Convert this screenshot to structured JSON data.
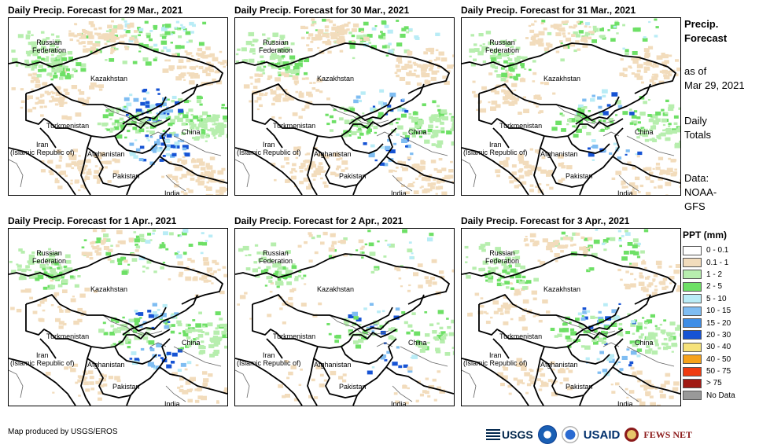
{
  "panels": [
    {
      "title": "Daily Precip. Forecast for 29 Mar., 2021"
    },
    {
      "title": "Daily Precip. Forecast for 30 Mar., 2021"
    },
    {
      "title": "Daily Precip. Forecast for 31 Mar., 2021"
    },
    {
      "title": "Daily Precip. Forecast for 1 Apr., 2021"
    },
    {
      "title": "Daily Precip. Forecast for 2 Apr., 2021"
    },
    {
      "title": "Daily Precip. Forecast for 3 Apr., 2021"
    }
  ],
  "country_labels": {
    "russia": "Russian\nFederation",
    "kazakhstan": "Kazakhstan",
    "turkmenistan": "Turkmenistan",
    "iran": "Iran\n(Islamic Republic of)",
    "afghanistan": "Afghanistan",
    "pakistan": "Pakistan",
    "china": "China",
    "india": "India"
  },
  "side_info": {
    "title_line1": "Precip.",
    "title_line2": "Forecast",
    "asof_line1": "as of",
    "asof_line2": "Mar 29, 2021",
    "totals_line1": "Daily",
    "totals_line2": "Totals",
    "data_line1": "Data:",
    "data_line2": "NOAA-",
    "data_line3": "GFS"
  },
  "legend": {
    "title": "PPT (mm)",
    "items": [
      {
        "label": "0 - 0.1",
        "color": "#ffffff"
      },
      {
        "label": "0.1 - 1",
        "color": "#f2dcbc"
      },
      {
        "label": "1 - 2",
        "color": "#b7eeae"
      },
      {
        "label": "2 - 5",
        "color": "#6ee066"
      },
      {
        "label": "5 - 10",
        "color": "#b9ecf6"
      },
      {
        "label": "10 - 15",
        "color": "#7fbdf2"
      },
      {
        "label": "15 - 20",
        "color": "#3f8ee6"
      },
      {
        "label": "20 - 30",
        "color": "#1653d4"
      },
      {
        "label": "30 - 40",
        "color": "#f6e27a"
      },
      {
        "label": "40 - 50",
        "color": "#f6a21a"
      },
      {
        "label": "50 - 75",
        "color": "#ef3b10"
      },
      {
        "label": "> 75",
        "color": "#a11a14"
      },
      {
        "label": "No Data",
        "color": "#999999"
      }
    ]
  },
  "credit": "Map produced by USGS/EROS",
  "logos": {
    "usgs": "USGS",
    "usaid": "USAID",
    "fews": "FEWS NET"
  },
  "precip_intensity": [
    {
      "tan": 0.55,
      "green": 0.45,
      "blue": 0.35
    },
    {
      "tan": 0.5,
      "green": 0.35,
      "blue": 0.15
    },
    {
      "tan": 0.45,
      "green": 0.3,
      "blue": 0.12
    },
    {
      "tan": 0.25,
      "green": 0.35,
      "blue": 0.2
    },
    {
      "tan": 0.15,
      "green": 0.22,
      "blue": 0.1
    },
    {
      "tan": 0.35,
      "green": 0.3,
      "blue": 0.15
    }
  ]
}
